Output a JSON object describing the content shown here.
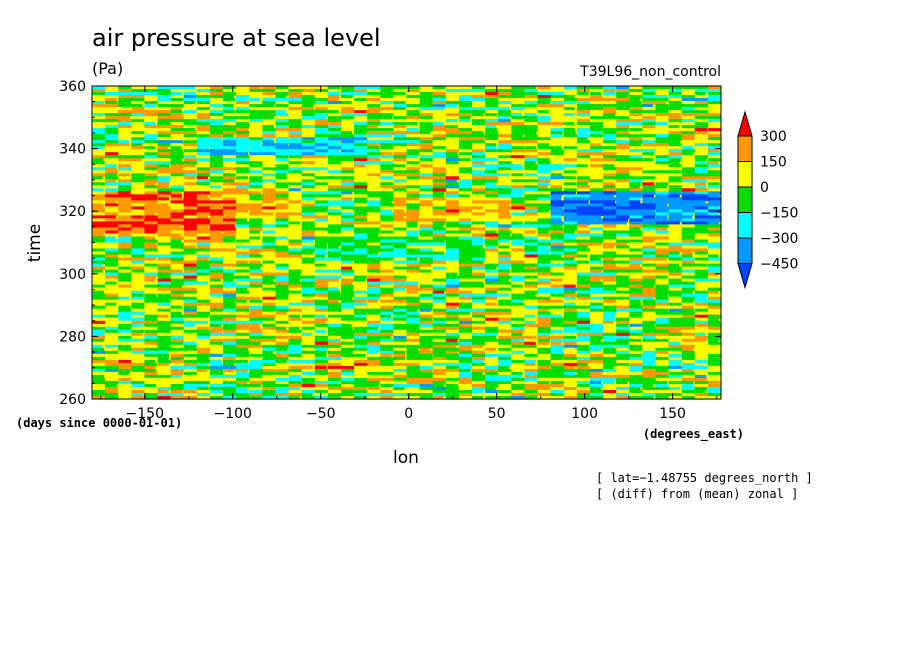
{
  "chart_data": {
    "type": "heatmap",
    "title": "air pressure at sea level",
    "units": "(Pa)",
    "experiment": "T39L96_non_control",
    "xlabel": "lon",
    "xunits": "(degrees_east)",
    "ylabel": "time",
    "yunits": "(days since 0000-01-01)",
    "xlim": [
      -180,
      177.5
    ],
    "ylim": [
      260,
      360
    ],
    "xticks": [
      -150,
      -100,
      -50,
      0,
      50,
      100,
      150
    ],
    "xtick_labels": [
      "−150",
      "−100",
      "−50",
      "0",
      "50",
      "100",
      "150"
    ],
    "yticks": [
      260,
      280,
      300,
      320,
      340,
      360
    ],
    "ytick_labels": [
      "260",
      "280",
      "300",
      "320",
      "340",
      "360"
    ],
    "notes": [
      "[ lat=−1.48755 degrees_north ]",
      "[ (diff) from (mean) zonal ]"
    ],
    "colorbar": {
      "levels": [
        300,
        150,
        0,
        -150,
        -300,
        -450
      ],
      "labels": [
        "300",
        "150",
        "0",
        "−150",
        "−300",
        "−450"
      ],
      "colors": [
        "#ff0000",
        "#ff9900",
        "#ffff00",
        "#00dd00",
        "#00ffff",
        "#0099ff",
        "#0044ff"
      ]
    },
    "features": [
      {
        "kind": "positive",
        "x": [
          -180,
          -100
        ],
        "y": [
          312,
          326
        ],
        "value": 300
      },
      {
        "kind": "positive",
        "x": [
          -100,
          -60
        ],
        "y": [
          318,
          326
        ],
        "value": 150
      },
      {
        "kind": "negative",
        "x": [
          80,
          177.5
        ],
        "y": [
          316,
          326
        ],
        "value": -450
      },
      {
        "kind": "negative",
        "x": [
          -120,
          -20
        ],
        "y": [
          338,
          344
        ],
        "value": -300
      },
      {
        "kind": "negative",
        "x": [
          -50,
          40
        ],
        "y": [
          304,
          312
        ],
        "value": -150
      },
      {
        "kind": "positive",
        "x": [
          -10,
          60
        ],
        "y": [
          318,
          324
        ],
        "value": 150
      }
    ]
  }
}
